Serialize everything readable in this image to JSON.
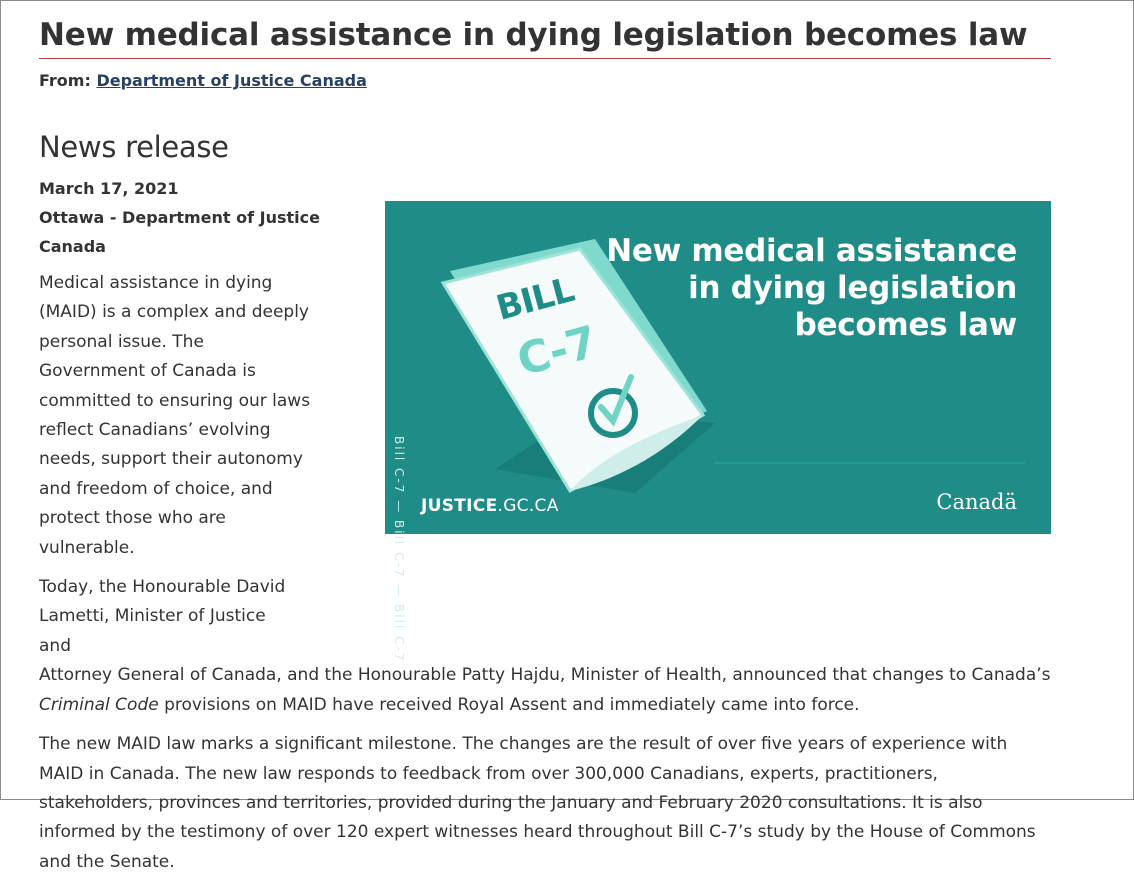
{
  "title": "New medical assistance in dying legislation becomes law",
  "from": {
    "label": "From:",
    "link": "Department of Justice Canada"
  },
  "section_title": "News release",
  "date": "March 17, 2021",
  "location": "Ottawa - Department of Justice Canada",
  "paragraphs": {
    "p1": "Medical assistance in dying (MAID) is a complex and deeply personal issue. The Government of Canada is committed to ensuring our laws reflect Canadians’ evolving needs, support their autonomy and freedom of choice, and protect those who are vulnerable.",
    "p2_a": "Today, the Honourable David Lametti, Minister of Justice and",
    "p2_b": "Attorney General of Canada, and the Honourable Patty Hajdu, Minister of Health, announced that changes to Canada’s",
    "p2_italic": "Criminal Code",
    "p2_c": "provisions on MAID have received Royal Assent and immediately came into force.",
    "p3": "The new MAID law marks a significant milestone. The changes are the result of over five years of experience with MAID in Canada. The new law responds to feedback from over 300,000 Canadians, experts, practitioners, stakeholders, provinces and territories, provided during the January and February 2020 consultations. It is also informed by the testimony of over 120 expert witnesses heard throughout Bill C-7’s study by the House of Commons and the Senate."
  },
  "banner": {
    "vertical_text": "Bill C-7 — Bill C-7 — Bill C-7",
    "doc_line1": "BILL",
    "doc_line2": "C-7",
    "headline_1": "New medical assistance",
    "headline_2": "in dying legislation",
    "headline_3": "becomes law",
    "site_bold": "JUSTICE",
    "site_rest": ".GC.CA",
    "wordmark": "Canadä",
    "colors": {
      "background": "#1f8c88",
      "accent": "#6fd3c5",
      "paper": "#f4fbfa"
    }
  }
}
